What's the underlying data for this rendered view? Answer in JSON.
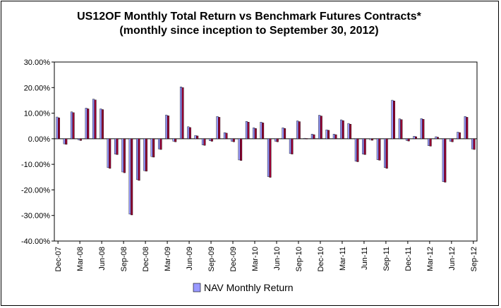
{
  "chart_data": {
    "type": "bar",
    "title": "US12OF Monthly Total Return vs Benchmark Futures Contracts*",
    "subtitle": "(monthly since inception to September 30, 2012)",
    "ylim": [
      -0.4,
      0.3
    ],
    "yticks": [
      0.3,
      0.2,
      0.1,
      0.0,
      -0.1,
      -0.2,
      -0.3,
      -0.4
    ],
    "ytick_labels": [
      "30.00%",
      "20.00%",
      "10.00%",
      "0.00%",
      "-10.00%",
      "-20.00%",
      "-30.00%",
      "-40.00%"
    ],
    "xtick_labels": [
      "Dec-07",
      "Mar-08",
      "Jun-08",
      "Sep-08",
      "Dec-08",
      "Mar-09",
      "Jun-09",
      "Sep-09",
      "Dec-09",
      "Mar-10",
      "Jun-10",
      "Sep-10",
      "Dec-10",
      "Mar-11",
      "Jun-11",
      "Sep-11",
      "Dec-11",
      "Mar-12",
      "Jun-12",
      "Sep-12"
    ],
    "legend_position": "bottom",
    "grid": false,
    "series": [
      {
        "name": "NAV Monthly Return",
        "color": "#9999ff",
        "values": [
          0.085,
          -0.02,
          0.105,
          -0.005,
          0.12,
          0.155,
          0.117,
          -0.113,
          -0.06,
          -0.13,
          -0.295,
          -0.16,
          -0.125,
          -0.07,
          -0.04,
          0.093,
          -0.01,
          0.203,
          0.047,
          0.013,
          -0.024,
          -0.008,
          0.087,
          0.024,
          -0.01,
          -0.083,
          0.068,
          0.043,
          0.065,
          -0.148,
          -0.01,
          0.043,
          -0.058,
          0.07,
          0.002,
          0.018,
          0.092,
          0.035,
          0.018,
          0.074,
          0.06,
          -0.088,
          -0.06,
          -0.004,
          -0.082,
          -0.113,
          0.151,
          0.078,
          -0.007,
          0.01,
          0.079,
          -0.027,
          0.008,
          -0.168,
          -0.01,
          0.026,
          0.087,
          -0.04
        ]
      },
      {
        "name": "",
        "color": "#990033",
        "values": [
          0.082,
          -0.022,
          0.102,
          -0.007,
          0.117,
          0.152,
          0.114,
          -0.116,
          -0.062,
          -0.133,
          -0.298,
          -0.163,
          -0.127,
          -0.072,
          -0.042,
          0.09,
          -0.012,
          0.2,
          0.044,
          0.011,
          -0.026,
          -0.01,
          0.084,
          0.022,
          -0.012,
          -0.085,
          0.065,
          0.04,
          0.062,
          -0.151,
          -0.012,
          0.04,
          -0.06,
          0.067,
          0.001,
          0.016,
          0.089,
          0.033,
          0.016,
          0.071,
          0.057,
          -0.09,
          -0.062,
          -0.006,
          -0.084,
          -0.116,
          0.148,
          0.075,
          -0.009,
          0.008,
          0.076,
          -0.029,
          0.006,
          -0.17,
          -0.012,
          0.024,
          0.084,
          -0.042
        ]
      }
    ]
  }
}
